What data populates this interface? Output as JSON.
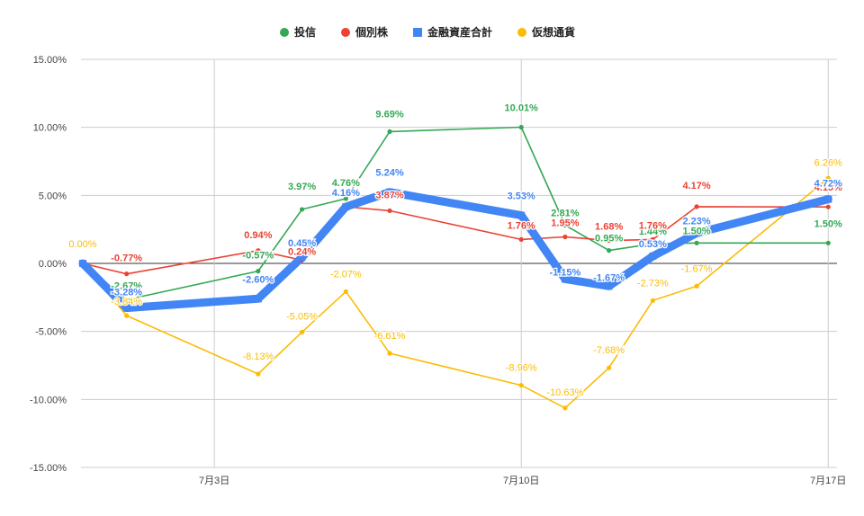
{
  "chart_data": {
    "type": "line",
    "legend_position": "top",
    "grid": true,
    "ylim": [
      -15,
      15
    ],
    "y_ticks": [
      "15.00%",
      "10.00%",
      "5.00%",
      "0.00%",
      "-5.00%",
      "-10.00%",
      "-15.00%"
    ],
    "y_tick_values": [
      15,
      10,
      5,
      0,
      -5,
      -10,
      -15
    ],
    "x_ticks": [
      {
        "label": "7月3日",
        "day": 3
      },
      {
        "label": "7月10日",
        "day": 10
      },
      {
        "label": "7月17日",
        "day": 17
      }
    ],
    "xlim": [
      -0.04,
      17.2
    ],
    "series": [
      {
        "name": "投信",
        "color": "#34a853",
        "x": [
          0,
          1,
          4,
          5,
          6,
          7,
          10,
          11,
          12,
          13,
          14,
          17
        ],
        "values": [
          0.0,
          -2.67,
          -0.57,
          3.97,
          4.76,
          9.69,
          10.01,
          2.81,
          0.95,
          1.44,
          1.5,
          1.5
        ],
        "labels": [
          "",
          "-2.67%",
          "-0.57%",
          "3.97%",
          "4.76%",
          "9.69%",
          "10.01%",
          "2.81%",
          "0.95%",
          "1.44%",
          "1.50%",
          "1.50%"
        ]
      },
      {
        "name": "個別株",
        "color": "#ea4335",
        "x": [
          0,
          1,
          4,
          5,
          6,
          7,
          10,
          11,
          12,
          13,
          14,
          17
        ],
        "values": [
          0.0,
          -0.77,
          0.94,
          0.24,
          4.16,
          3.87,
          1.76,
          1.95,
          1.68,
          1.76,
          4.17,
          4.15
        ],
        "labels": [
          "",
          "-0.77%",
          "0.94%",
          "0.24%",
          "",
          "3.87%",
          "1.76%",
          "1.95%",
          "1.68%",
          "1.76%",
          "4.17%",
          "4.15%"
        ]
      },
      {
        "name": "金融資産合計",
        "color": "#4285f4",
        "x": [
          0,
          1,
          4,
          5,
          6,
          7,
          10,
          11,
          12,
          13,
          14,
          17
        ],
        "values": [
          0.0,
          -3.28,
          -2.6,
          0.45,
          4.16,
          5.24,
          3.53,
          -1.15,
          -1.67,
          0.53,
          2.23,
          4.72
        ],
        "labels": [
          "",
          "-3.28%",
          "-2.60%",
          "0.45%",
          "4.16%",
          "5.24%",
          "3.53%",
          "-1.15%",
          "-1.67%",
          "0.53%",
          "2.23%",
          "4.72%"
        ]
      },
      {
        "name": "仮想通貨",
        "color": "#fbbc04",
        "x": [
          0,
          1,
          4,
          5,
          6,
          7,
          10,
          11,
          12,
          13,
          14,
          17
        ],
        "values": [
          0.0,
          -3.84,
          -8.13,
          -5.05,
          -2.07,
          -6.61,
          -8.96,
          -10.63,
          -7.68,
          -2.73,
          -1.67,
          6.26
        ],
        "labels": [
          "0.00%",
          "-3.84%",
          "-8.13%",
          "-5.05%",
          "-2.07%",
          "-6.61%",
          "-8.96%",
          "-10.63%",
          "-7.68%",
          "-2.73%",
          "-1.67%",
          "6.26%"
        ]
      }
    ]
  }
}
